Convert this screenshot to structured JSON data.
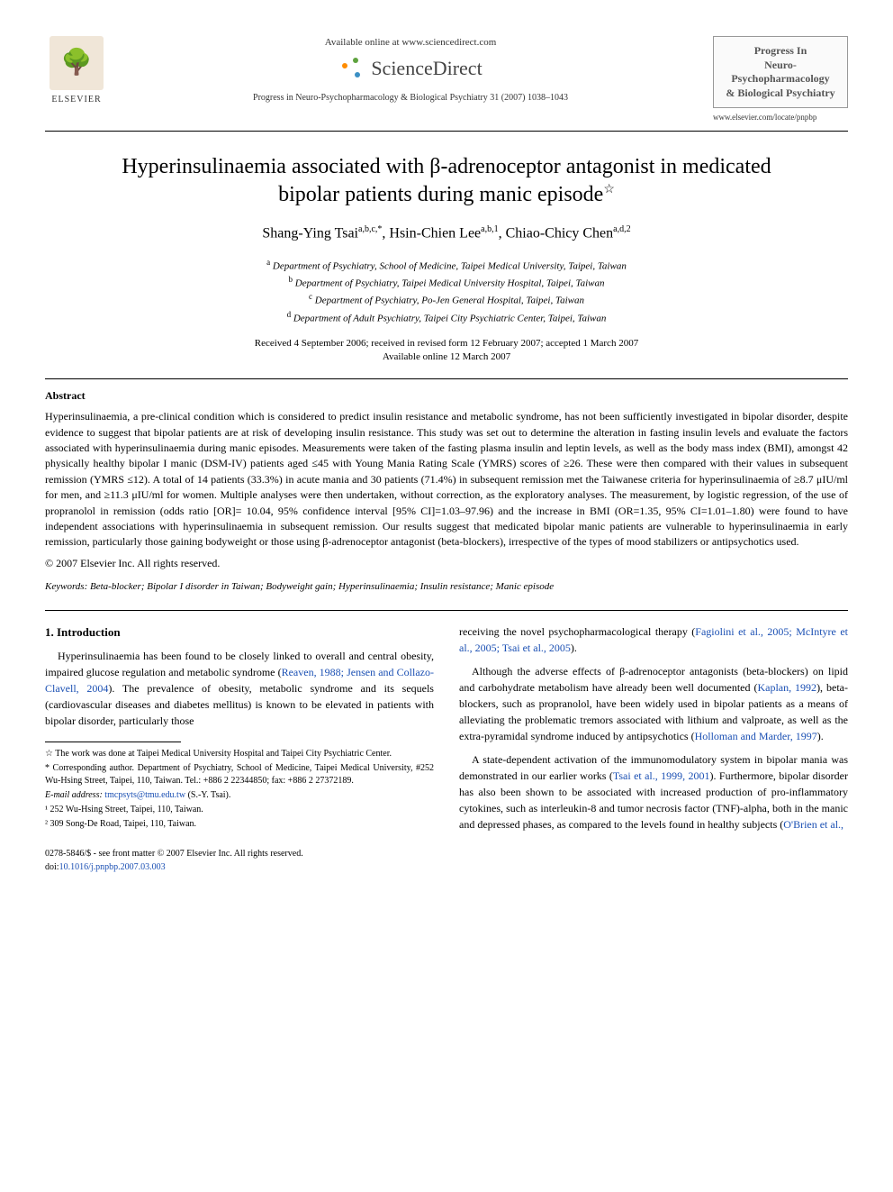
{
  "header": {
    "elsevier_label": "ELSEVIER",
    "available_online": "Available online at www.sciencedirect.com",
    "sciencedirect": "ScienceDirect",
    "journal_ref": "Progress in Neuro-Psychopharmacology & Biological Psychiatry 31 (2007) 1038–1043",
    "journal_box_line1": "Progress In",
    "journal_box_line2": "Neuro-Psychopharmacology",
    "journal_box_line3": "& Biological Psychiatry",
    "journal_url": "www.elsevier.com/locate/pnpbp"
  },
  "title": "Hyperinsulinaemia associated with β-adrenoceptor antagonist in medicated bipolar patients during manic episode",
  "title_star": "☆",
  "authors": {
    "a1_name": "Shang-Ying Tsai",
    "a1_sup": "a,b,c,*",
    "a2_name": "Hsin-Chien Lee",
    "a2_sup": "a,b,1",
    "a3_name": "Chiao-Chicy Chen",
    "a3_sup": "a,d,2"
  },
  "affiliations": {
    "a": "Department of Psychiatry, School of Medicine, Taipei Medical University, Taipei, Taiwan",
    "b": "Department of Psychiatry, Taipei Medical University Hospital, Taipei, Taiwan",
    "c": "Department of Psychiatry, Po-Jen General Hospital, Taipei, Taiwan",
    "d": "Department of Adult Psychiatry, Taipei City Psychiatric Center, Taipei, Taiwan"
  },
  "dates": {
    "line1": "Received 4 September 2006; received in revised form 12 February 2007; accepted 1 March 2007",
    "line2": "Available online 12 March 2007"
  },
  "abstract": {
    "label": "Abstract",
    "body": "Hyperinsulinaemia, a pre-clinical condition which is considered to predict insulin resistance and metabolic syndrome, has not been sufficiently investigated in bipolar disorder, despite evidence to suggest that bipolar patients are at risk of developing insulin resistance. This study was set out to determine the alteration in fasting insulin levels and evaluate the factors associated with hyperinsulinaemia during manic episodes. Measurements were taken of the fasting plasma insulin and leptin levels, as well as the body mass index (BMI), amongst 42 physically healthy bipolar I manic (DSM-IV) patients aged ≤45 with Young Mania Rating Scale (YMRS) scores of ≥26. These were then compared with their values in subsequent remission (YMRS ≤12). A total of 14 patients (33.3%) in acute mania and 30 patients (71.4%) in subsequent remission met the Taiwanese criteria for hyperinsulinaemia of ≥8.7 μIU/ml for men, and ≥11.3 μIU/ml for women. Multiple analyses were then undertaken, without correction, as the exploratory analyses. The measurement, by logistic regression, of the use of propranolol in remission (odds ratio [OR]= 10.04, 95% confidence interval [95% CI]=1.03–97.96) and the increase in BMI (OR=1.35, 95% CI=1.01–1.80) were found to have independent associations with hyperinsulinaemia in subsequent remission. Our results suggest that medicated bipolar manic patients are vulnerable to hyperinsulinaemia in early remission, particularly those gaining bodyweight or those using β-adrenoceptor antagonist (beta-blockers), irrespective of the types of mood stabilizers or antipsychotics used.",
    "copyright": "© 2007 Elsevier Inc. All rights reserved."
  },
  "keywords": {
    "label": "Keywords:",
    "text": "Beta-blocker; Bipolar I disorder in Taiwan; Bodyweight gain; Hyperinsulinaemia; Insulin resistance; Manic episode"
  },
  "intro": {
    "heading": "1. Introduction",
    "p1_a": "Hyperinsulinaemia has been found to be closely linked to overall and central obesity, impaired glucose regulation and metabolic syndrome (",
    "p1_cite1": "Reaven, 1988; Jensen and Collazo-Clavell, 2004",
    "p1_b": "). The prevalence of obesity, metabolic syndrome and its sequels (cardiovascular diseases and diabetes mellitus) is known to be elevated in patients with bipolar disorder, particularly those",
    "p2_a": "receiving the novel psychopharmacological therapy (",
    "p2_cite": "Fagiolini et al., 2005; McIntyre et al., 2005; Tsai et al., 2005",
    "p2_b": ").",
    "p3_a": "Although the adverse effects of β-adrenoceptor antagonists (beta-blockers) on lipid and carbohydrate metabolism have already been well documented (",
    "p3_cite1": "Kaplan, 1992",
    "p3_b": "), beta-blockers, such as propranolol, have been widely used in bipolar patients as a means of alleviating the problematic tremors associated with lithium and valproate, as well as the extra-pyramidal syndrome induced by antipsychotics (",
    "p3_cite2": "Holloman and Marder, 1997",
    "p3_c": ").",
    "p4_a": "A state-dependent activation of the immunomodulatory system in bipolar mania was demonstrated in our earlier works (",
    "p4_cite1": "Tsai et al., 1999, 2001",
    "p4_b": "). Furthermore, bipolar disorder has also been shown to be associated with increased production of pro-inflammatory cytokines, such as interleukin-8 and tumor necrosis factor (TNF)-alpha, both in the manic and depressed phases, as compared to the levels found in healthy subjects (",
    "p4_cite2": "O'Brien et al.,"
  },
  "footnotes": {
    "star": "☆ The work was done at Taipei Medical University Hospital and Taipei City Psychiatric Center.",
    "corr": "* Corresponding author. Department of Psychiatry, School of Medicine, Taipei Medical University, #252 Wu-Hsing Street, Taipei, 110, Taiwan. Tel.: +886 2 22344850; fax: +886 2 27372189.",
    "email_label": "E-mail address:",
    "email": "tmcpsyts@tmu.edu.tw",
    "email_tail": "(S.-Y. Tsai).",
    "fn1": "¹ 252 Wu-Hsing Street, Taipei, 110, Taiwan.",
    "fn2": "² 309 Song-De Road, Taipei, 110, Taiwan."
  },
  "bottom": {
    "left_line1": "0278-5846/$ - see front matter © 2007 Elsevier Inc. All rights reserved.",
    "left_line2_prefix": "doi:",
    "doi": "10.1016/j.pnpbp.2007.03.003"
  },
  "colors": {
    "link": "#1a4fb3",
    "text": "#000000",
    "background": "#ffffff"
  }
}
